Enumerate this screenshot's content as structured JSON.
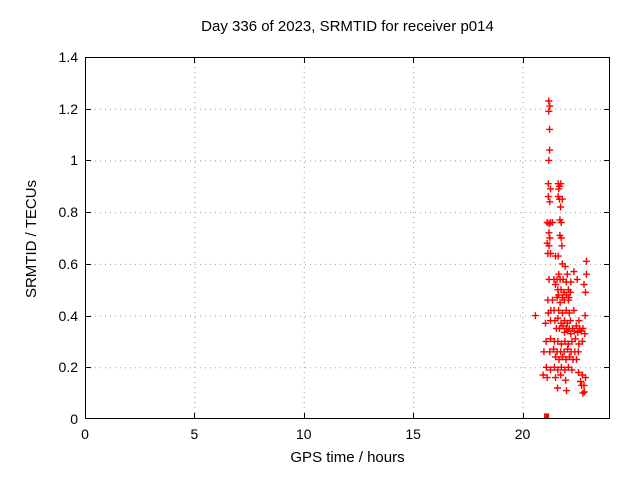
{
  "header": {
    "title": "Day 336 of 2023, SRMTID for receiver p014"
  },
  "chart_data": {
    "type": "scatter",
    "title": "Day 336 of 2023, SRMTID for receiver p014",
    "xlabel": "GPS time / hours",
    "ylabel": "SRMTID / TECUs",
    "xlim": [
      0,
      24
    ],
    "ylim": [
      0,
      1.4
    ],
    "xticks": [
      0,
      5,
      10,
      15,
      20
    ],
    "yticks": [
      0,
      0.2,
      0.4,
      0.6,
      0.8,
      1,
      1.2,
      1.4
    ],
    "grid": true,
    "legend_position": "none",
    "marker": "plus",
    "marker_color": "#ff0000",
    "grid_color": "#9e9e9e",
    "border_color": "#000000",
    "series": [
      {
        "name": "SRMTID",
        "points": [
          [
            21.2,
            1.23
          ],
          [
            21.25,
            1.21
          ],
          [
            21.2,
            1.19
          ],
          [
            21.24,
            1.12
          ],
          [
            21.24,
            1.04
          ],
          [
            21.2,
            1.0
          ],
          [
            21.18,
            0.91
          ],
          [
            21.63,
            0.91
          ],
          [
            21.75,
            0.91
          ],
          [
            21.69,
            0.9
          ],
          [
            21.28,
            0.89
          ],
          [
            21.66,
            0.89
          ],
          [
            21.18,
            0.86
          ],
          [
            21.63,
            0.86
          ],
          [
            21.69,
            0.85
          ],
          [
            21.82,
            0.85
          ],
          [
            21.25,
            0.84
          ],
          [
            21.74,
            0.82
          ],
          [
            21.13,
            0.76
          ],
          [
            21.28,
            0.76
          ],
          [
            21.21,
            0.755
          ],
          [
            21.37,
            0.76
          ],
          [
            21.71,
            0.77
          ],
          [
            21.77,
            0.76
          ],
          [
            21.21,
            0.72
          ],
          [
            21.25,
            0.7
          ],
          [
            21.71,
            0.71
          ],
          [
            21.77,
            0.7
          ],
          [
            21.13,
            0.68
          ],
          [
            21.21,
            0.67
          ],
          [
            21.8,
            0.67
          ],
          [
            21.16,
            0.64
          ],
          [
            21.28,
            0.64
          ],
          [
            21.51,
            0.63
          ],
          [
            21.63,
            0.63
          ],
          [
            22.92,
            0.61
          ],
          [
            21.82,
            0.6
          ],
          [
            21.95,
            0.59
          ],
          [
            21.66,
            0.56
          ],
          [
            22.05,
            0.56
          ],
          [
            22.35,
            0.57
          ],
          [
            22.92,
            0.56
          ],
          [
            21.21,
            0.54
          ],
          [
            21.44,
            0.54
          ],
          [
            21.58,
            0.54
          ],
          [
            21.72,
            0.54
          ],
          [
            21.85,
            0.54
          ],
          [
            22.0,
            0.53
          ],
          [
            21.51,
            0.52
          ],
          [
            22.21,
            0.53
          ],
          [
            22.5,
            0.54
          ],
          [
            22.81,
            0.52
          ],
          [
            21.62,
            0.5
          ],
          [
            21.76,
            0.5
          ],
          [
            21.9,
            0.49
          ],
          [
            22.1,
            0.5
          ],
          [
            22.19,
            0.49
          ],
          [
            21.65,
            0.48
          ],
          [
            21.83,
            0.47
          ],
          [
            22.01,
            0.48
          ],
          [
            22.88,
            0.49
          ],
          [
            21.16,
            0.46
          ],
          [
            21.37,
            0.46
          ],
          [
            21.58,
            0.47
          ],
          [
            21.72,
            0.45
          ],
          [
            21.92,
            0.46
          ],
          [
            22.1,
            0.46
          ],
          [
            22.12,
            0.47
          ],
          [
            21.18,
            0.41
          ],
          [
            21.3,
            0.42
          ],
          [
            21.44,
            0.42
          ],
          [
            21.65,
            0.42
          ],
          [
            21.83,
            0.41
          ],
          [
            22.0,
            0.42
          ],
          [
            22.14,
            0.41
          ],
          [
            22.35,
            0.42
          ],
          [
            20.59,
            0.4
          ],
          [
            22.86,
            0.4
          ],
          [
            21.05,
            0.37
          ],
          [
            21.28,
            0.38
          ],
          [
            21.48,
            0.38
          ],
          [
            21.62,
            0.39
          ],
          [
            21.76,
            0.37
          ],
          [
            21.92,
            0.38
          ],
          [
            22.05,
            0.37
          ],
          [
            22.19,
            0.38
          ],
          [
            22.58,
            0.38
          ],
          [
            21.55,
            0.35
          ],
          [
            21.69,
            0.35
          ],
          [
            21.85,
            0.36
          ],
          [
            22.0,
            0.35
          ],
          [
            22.14,
            0.35
          ],
          [
            22.28,
            0.35
          ],
          [
            22.46,
            0.36
          ],
          [
            22.62,
            0.35
          ],
          [
            22.76,
            0.35
          ],
          [
            21.92,
            0.335
          ],
          [
            22.07,
            0.34
          ],
          [
            22.21,
            0.33
          ],
          [
            22.37,
            0.34
          ],
          [
            22.53,
            0.335
          ],
          [
            22.69,
            0.34
          ],
          [
            22.85,
            0.33
          ],
          [
            21.08,
            0.3
          ],
          [
            21.28,
            0.31
          ],
          [
            21.46,
            0.3
          ],
          [
            21.62,
            0.3
          ],
          [
            21.78,
            0.29
          ],
          [
            21.94,
            0.3
          ],
          [
            22.1,
            0.29
          ],
          [
            22.26,
            0.3
          ],
          [
            22.42,
            0.31
          ],
          [
            22.58,
            0.29
          ],
          [
            22.74,
            0.3
          ],
          [
            20.98,
            0.26
          ],
          [
            21.25,
            0.26
          ],
          [
            21.42,
            0.27
          ],
          [
            21.58,
            0.26
          ],
          [
            21.74,
            0.26
          ],
          [
            21.9,
            0.26
          ],
          [
            22.06,
            0.27
          ],
          [
            22.22,
            0.26
          ],
          [
            22.39,
            0.26
          ],
          [
            22.55,
            0.26
          ],
          [
            21.51,
            0.24
          ],
          [
            21.67,
            0.23
          ],
          [
            21.83,
            0.24
          ],
          [
            21.99,
            0.23
          ],
          [
            22.15,
            0.24
          ],
          [
            22.31,
            0.23
          ],
          [
            22.47,
            0.23
          ],
          [
            21.09,
            0.2
          ],
          [
            21.28,
            0.19
          ],
          [
            21.46,
            0.2
          ],
          [
            21.62,
            0.19
          ],
          [
            21.78,
            0.2
          ],
          [
            21.94,
            0.19
          ],
          [
            22.1,
            0.2
          ],
          [
            22.26,
            0.19
          ],
          [
            22.56,
            0.18
          ],
          [
            20.94,
            0.17
          ],
          [
            21.13,
            0.16
          ],
          [
            21.51,
            0.16
          ],
          [
            21.74,
            0.17
          ],
          [
            22.74,
            0.17
          ],
          [
            22.88,
            0.16
          ],
          [
            21.97,
            0.15
          ],
          [
            22.65,
            0.145
          ],
          [
            22.81,
            0.13
          ],
          [
            21.6,
            0.12
          ],
          [
            22.01,
            0.11
          ],
          [
            22.7,
            0.13
          ],
          [
            22.83,
            0.105
          ],
          [
            22.76,
            0.1
          ]
        ]
      }
    ],
    "special_points": [
      {
        "x": 21.1,
        "y": 0.008,
        "marker": "square"
      }
    ]
  }
}
